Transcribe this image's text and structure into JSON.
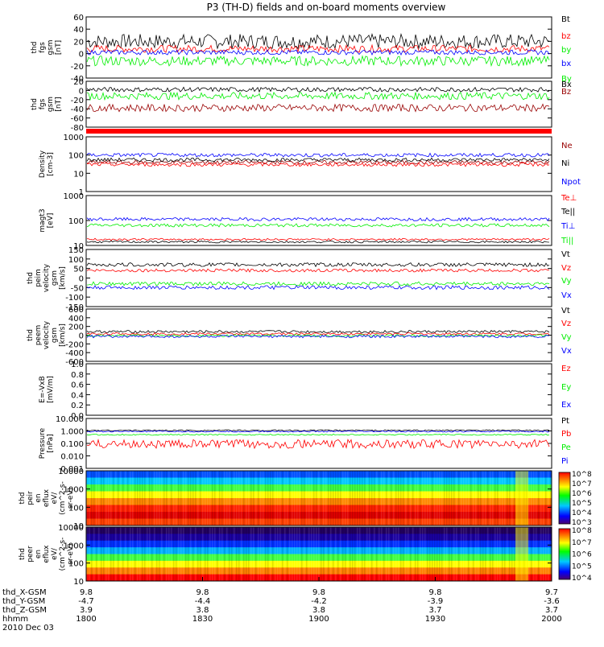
{
  "title": "P3 (TH-D) fields and on-board moments overview",
  "colors": {
    "black": "#000000",
    "red": "#ff0000",
    "darkred": "#990000",
    "green": "#00ee00",
    "blue": "#0000ff",
    "flag": "#ff0000"
  },
  "chart_data": [
    {
      "type": "line",
      "ylabel": [
        "thd",
        "fgs",
        "gsm",
        "[nT]"
      ],
      "ylim": [
        -40,
        60
      ],
      "ticks": [
        "60",
        "40",
        "20",
        "0",
        "-20",
        "-40"
      ],
      "series": [
        {
          "name": "Bt",
          "color": "#000000",
          "level": 20,
          "amp": 12
        },
        {
          "name": "bz",
          "color": "#ff0000",
          "level": 8,
          "amp": 6
        },
        {
          "name": "by",
          "color": "#00ee00",
          "level": -12,
          "amp": 8
        },
        {
          "name": "bx",
          "color": "#0000ff",
          "level": 2,
          "amp": 4
        }
      ]
    },
    {
      "type": "line",
      "ylabel": [
        "thd",
        "fgs",
        "gsm",
        "[nT]"
      ],
      "ylim": [
        -80,
        20
      ],
      "ticks": [
        "20",
        "0",
        "-20",
        "-40",
        "-60",
        "-80"
      ],
      "series": [
        {
          "name": "By",
          "color": "#00ee00",
          "level": -12,
          "amp": 8
        },
        {
          "name": "Bx",
          "color": "#000000",
          "level": 2,
          "amp": 5
        },
        {
          "name": "Bz",
          "color": "#990000",
          "level": -38,
          "amp": 8
        }
      ]
    },
    {
      "type": "line",
      "ylabel": [
        "Density",
        "[cm-3]"
      ],
      "scale": "log",
      "ylim": [
        1,
        1000
      ],
      "ticks": [
        "1000",
        "100",
        "10",
        "1"
      ],
      "series": [
        {
          "name": "Ne",
          "color": "#990000",
          "level": 40,
          "amp": 0.1
        },
        {
          "name": "Ni",
          "color": "#000000",
          "level": 55,
          "amp": 0.1
        },
        {
          "name": "Npot",
          "color": "#0000ff",
          "level": 100,
          "amp": 0.1
        },
        {
          "name": "Te⊥",
          "color": "#ff0000",
          "level": 30,
          "amp": 0.1
        }
      ]
    },
    {
      "type": "line",
      "ylabel": [
        "magt3",
        "[eV]"
      ],
      "scale": "log",
      "ylim": [
        10,
        3000
      ],
      "ticks": [
        "1000",
        "100",
        "10"
      ],
      "series": [
        {
          "name": "Te||",
          "color": "#000000",
          "level": 15,
          "amp": 0.05
        },
        {
          "name": "Ti⊥",
          "color": "#0000ff",
          "level": 200,
          "amp": 0.08
        },
        {
          "name": "Ti||",
          "color": "#00ee00",
          "level": 100,
          "amp": 0.08
        },
        {
          "name": "Te⊥",
          "color": "#ff0000",
          "level": 20,
          "amp": 0.05
        }
      ]
    },
    {
      "type": "line",
      "ylabel": [
        "thd",
        "peim",
        "velocity",
        "gsm",
        "[km/s]"
      ],
      "ylim": [
        -150,
        150
      ],
      "ticks": [
        "150",
        "100",
        "50",
        "0",
        "-50",
        "-100",
        "-150"
      ],
      "series": [
        {
          "name": "Vt",
          "color": "#000000",
          "level": 70,
          "amp": 10
        },
        {
          "name": "Vz",
          "color": "#ff0000",
          "level": 40,
          "amp": 8
        },
        {
          "name": "Vy",
          "color": "#00ee00",
          "level": -30,
          "amp": 10
        },
        {
          "name": "Vx",
          "color": "#0000ff",
          "level": -50,
          "amp": 10
        }
      ]
    },
    {
      "type": "line",
      "ylabel": [
        "thd",
        "peem",
        "velocity",
        "gsm",
        "[km/s]"
      ],
      "ylim": [
        -600,
        600
      ],
      "ticks": [
        "600",
        "400",
        "200",
        "0",
        "-200",
        "-400",
        "-600"
      ],
      "series": [
        {
          "name": "Vt",
          "color": "#000000",
          "level": 80,
          "amp": 30
        },
        {
          "name": "Vz",
          "color": "#ff0000",
          "level": 30,
          "amp": 25
        },
        {
          "name": "Vy",
          "color": "#00ee00",
          "level": -10,
          "amp": 25
        },
        {
          "name": "Vx",
          "color": "#0000ff",
          "level": -30,
          "amp": 30
        }
      ]
    },
    {
      "type": "line",
      "ylabel": [
        "E=-VxB",
        "[mV/m]"
      ],
      "ylim": [
        0,
        1
      ],
      "ticks": [
        "1.0",
        "0.8",
        "0.6",
        "0.4",
        "0.2",
        "0.0"
      ],
      "series": [
        {
          "name": "Ez",
          "color": "#ff0000"
        },
        {
          "name": "Ey",
          "color": "#00ee00"
        },
        {
          "name": "Ex",
          "color": "#0000ff"
        }
      ]
    },
    {
      "type": "line",
      "ylabel": [
        "Pressure",
        "[nPa]"
      ],
      "scale": "log",
      "ylim": [
        0.001,
        10
      ],
      "ticks": [
        "10.000",
        "1.000",
        "0.100",
        "0.010",
        "0.001"
      ],
      "series": [
        {
          "name": "Pt",
          "color": "#000000",
          "level": 1.1,
          "amp": 0.05
        },
        {
          "name": "Pb",
          "color": "#ff0000",
          "level": 0.09,
          "amp": 0.35
        },
        {
          "name": "Pe",
          "color": "#00ee00",
          "level": 0.5,
          "amp": 0.05
        },
        {
          "name": "Pi",
          "color": "#0000ff",
          "level": 0.9,
          "amp": 0.05
        }
      ]
    },
    {
      "type": "heatmap",
      "ylabel": [
        "thd",
        "peir",
        "en",
        "eflux",
        "eV/",
        "(cm^2-s-",
        "sr-eV)"
      ],
      "ticks": [
        "10000",
        "1000",
        "100",
        "10"
      ],
      "colorbar_ticks": [
        "10^8",
        "10^7",
        "10^6",
        "10^5",
        "10^4",
        "10^3"
      ]
    },
    {
      "type": "heatmap",
      "ylabel": [
        "thd",
        "peer",
        "en",
        "eflux",
        "eV/",
        "(cm^2-s-",
        "sr-eV)"
      ],
      "ticks": [
        "10000",
        "1000",
        "100",
        "10"
      ],
      "colorbar_ticks": [
        "10^8",
        "10^7",
        "10^6",
        "10^5",
        "10^4"
      ]
    }
  ],
  "x_axis": {
    "labels": [
      "thd_X-GSM",
      "thd_Y-GSM",
      "thd_Z-GSM",
      "hhmm",
      "2010 Dec 03"
    ],
    "columns": [
      [
        "9.8",
        "-4.7",
        "3.9",
        "1800"
      ],
      [
        "9.8",
        "-4.4",
        "3.8",
        "1830"
      ],
      [
        "9.8",
        "-4.2",
        "3.8",
        "1900"
      ],
      [
        "9.8",
        "-3.9",
        "3.7",
        "1930"
      ],
      [
        "9.7",
        "-3.6",
        "3.7",
        "2000"
      ]
    ]
  }
}
